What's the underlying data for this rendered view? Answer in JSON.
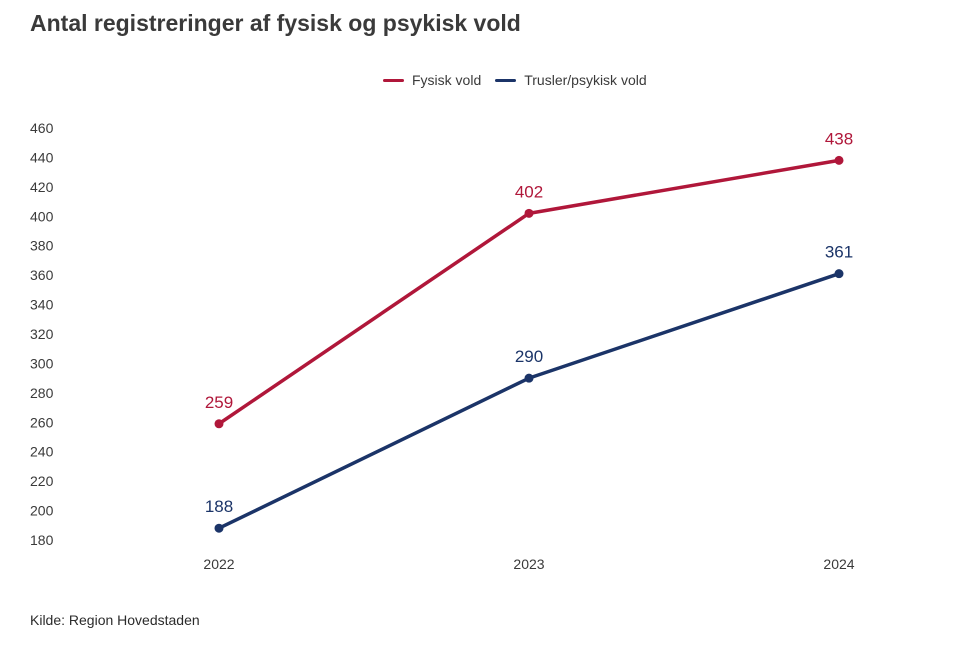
{
  "title": "Antal registreringer af fysisk og psykisk vold",
  "source": "Kilde: Region Hovedstaden",
  "chart_data": {
    "type": "line",
    "title": "Antal registreringer af fysisk og psykisk vold",
    "categories": [
      "2022",
      "2023",
      "2024"
    ],
    "series": [
      {
        "name": "Fysisk vold",
        "color": "#b0173a",
        "values": [
          259,
          402,
          438
        ],
        "labels": [
          "259",
          "402",
          "438"
        ]
      },
      {
        "name": "Trusler/psykisk vold",
        "color": "#1b3468",
        "values": [
          188,
          290,
          361
        ],
        "labels": [
          "188",
          "290",
          "361"
        ]
      }
    ],
    "ylim": [
      180,
      460
    ],
    "yticks": [
      180,
      200,
      220,
      240,
      260,
      280,
      300,
      320,
      340,
      360,
      380,
      400,
      420,
      440,
      460
    ],
    "xlabel": "",
    "ylabel": "",
    "grid": false,
    "legend": "top-center"
  }
}
